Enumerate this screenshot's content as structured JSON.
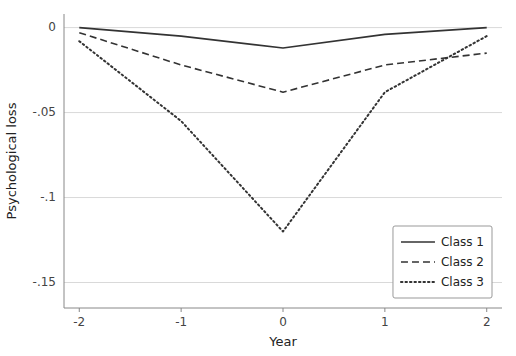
{
  "chart_data": {
    "type": "line",
    "x": [
      -2,
      -1,
      0,
      1,
      2
    ],
    "series": [
      {
        "name": "Class 1",
        "color": "#333333",
        "line_style": "solid",
        "values": [
          0.0,
          -0.005,
          -0.012,
          -0.004,
          0.0
        ]
      },
      {
        "name": "Class 2",
        "color": "#333333",
        "line_style": "dashed",
        "values": [
          -0.003,
          -0.022,
          -0.038,
          -0.022,
          -0.015
        ]
      },
      {
        "name": "Class 3",
        "color": "#333333",
        "line_style": "dotted",
        "values": [
          -0.008,
          -0.055,
          -0.12,
          -0.038,
          -0.005
        ]
      }
    ],
    "xlabel": "Year",
    "ylabel": "Psychological loss",
    "xlim": [
      -2.15,
      2.15
    ],
    "ylim": [
      -0.165,
      0.008
    ],
    "xticks": [
      -2,
      -1,
      0,
      1,
      2
    ],
    "yticks": [
      0,
      {
        "value": -0.05,
        "label": "-.05"
      },
      {
        "value": -0.1,
        "label": "-.1"
      },
      {
        "value": -0.15,
        "label": "-.15"
      }
    ],
    "grid": "y",
    "legend": "lower right"
  }
}
